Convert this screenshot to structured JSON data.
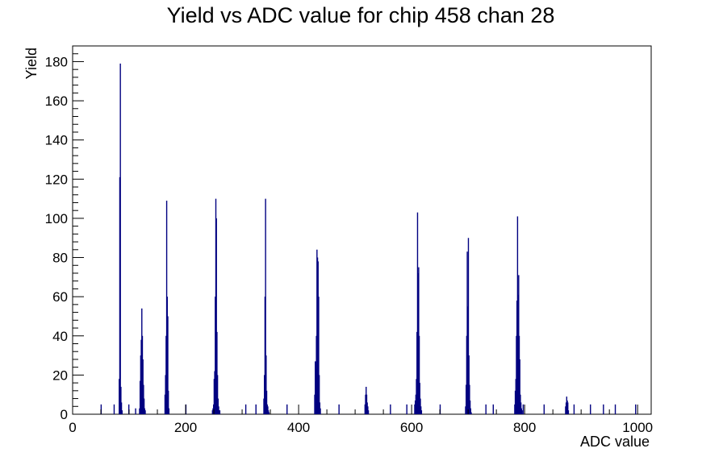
{
  "chart_data": {
    "type": "bar",
    "title": "Yield vs ADC value for chip 458 chan 28",
    "xlabel": "ADC value",
    "ylabel": "Yield",
    "xlim": [
      0,
      1024
    ],
    "ylim": [
      0,
      188
    ],
    "x_ticks": [
      0,
      200,
      400,
      600,
      800,
      1000
    ],
    "y_ticks": [
      0,
      20,
      40,
      60,
      80,
      100,
      120,
      140,
      160,
      180
    ],
    "grid": false,
    "legend": "none",
    "colors": {
      "series": "#000080",
      "axis": "#000000",
      "background": "#ffffff"
    },
    "series": [
      {
        "x": [
          50,
          73,
          82,
          83,
          84,
          85,
          86,
          87,
          99,
          111,
          118,
          119,
          120,
          121,
          122,
          123,
          124,
          125,
          126,
          127,
          128,
          163,
          164,
          165,
          166,
          167,
          168,
          169,
          170,
          200,
          247,
          248,
          249,
          250,
          251,
          252,
          253,
          254,
          255,
          256,
          257,
          258,
          259,
          260,
          306,
          324,
          338,
          339,
          340,
          341,
          342,
          343,
          344,
          345,
          346,
          347,
          379,
          428,
          429,
          430,
          431,
          432,
          433,
          434,
          435,
          436,
          437,
          438,
          471,
          517,
          518,
          519,
          520,
          521,
          522,
          523,
          562,
          591,
          605,
          606,
          607,
          608,
          609,
          610,
          611,
          612,
          613,
          614,
          615,
          616,
          617,
          650,
          695,
          696,
          697,
          698,
          699,
          700,
          701,
          702,
          703,
          704,
          705,
          731,
          744,
          782,
          783,
          784,
          785,
          786,
          787,
          788,
          789,
          790,
          791,
          792,
          793,
          794,
          795,
          797,
          834,
          872,
          873,
          874,
          875,
          876,
          877,
          887,
          916,
          939,
          960,
          996
        ],
        "values": [
          5,
          5,
          18,
          121,
          179,
          14,
          6,
          2,
          5,
          3,
          3,
          17,
          30,
          38,
          54,
          40,
          28,
          15,
          8,
          3,
          2,
          10,
          20,
          40,
          109,
          60,
          50,
          12,
          3,
          5,
          2,
          3,
          5,
          18,
          22,
          60,
          110,
          100,
          42,
          20,
          8,
          4,
          2,
          2,
          5,
          5,
          8,
          20,
          60,
          110,
          30,
          12,
          5,
          4,
          2,
          1,
          5,
          10,
          27,
          23,
          40,
          84,
          80,
          78,
          60,
          20,
          6,
          3,
          5,
          5,
          10,
          14,
          10,
          6,
          4,
          2,
          5,
          5,
          5,
          7,
          10,
          18,
          42,
          103,
          72,
          75,
          40,
          16,
          8,
          4,
          2,
          5,
          4,
          15,
          40,
          83,
          55,
          90,
          30,
          15,
          7,
          3,
          1,
          5,
          5,
          5,
          12,
          18,
          40,
          58,
          101,
          61,
          71,
          40,
          28,
          10,
          6,
          3,
          2,
          5,
          5,
          4,
          6,
          9,
          7,
          6,
          2,
          5,
          5,
          5,
          5,
          5
        ]
      }
    ]
  }
}
